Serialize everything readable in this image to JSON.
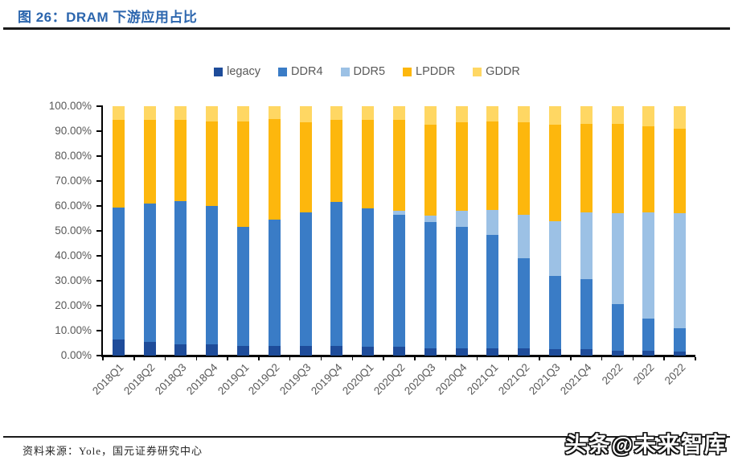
{
  "header": {
    "title": "图 26：DRAM 下游应用占比"
  },
  "footer": {
    "source": "资料来源：Yole，国元证券研究中心"
  },
  "watermark": "头条@未来智库",
  "chart_data": {
    "type": "bar",
    "stacked": true,
    "stacked_total": 100,
    "title": "DRAM 下游应用占比",
    "xlabel": "",
    "ylabel": "",
    "ylim": [
      0,
      100
    ],
    "grid": false,
    "legend_position": "top",
    "yticks": [
      "100.00%",
      "90.00%",
      "80.00%",
      "70.00%",
      "60.00%",
      "50.00%",
      "40.00%",
      "30.00%",
      "20.00%",
      "10.00%",
      "0.00%"
    ],
    "categories": [
      "2018Q1",
      "2018Q2",
      "2018Q3",
      "2018Q4",
      "2019Q1",
      "2019Q2",
      "2019Q3",
      "2019Q4",
      "2020Q1",
      "2020Q2",
      "2020Q3",
      "2020Q4",
      "2021Q1",
      "2021Q2",
      "2021Q3",
      "2021Q4",
      "2022",
      "2022",
      "2022"
    ],
    "series": [
      {
        "name": "legacy",
        "color": "#1E4C9A",
        "values": [
          6.5,
          5.5,
          4.5,
          4.5,
          4,
          4,
          4,
          4,
          3.5,
          3.5,
          3,
          3,
          3,
          3,
          2.5,
          2.5,
          2,
          2,
          1.5
        ]
      },
      {
        "name": "DDR4",
        "color": "#3A7CC6",
        "values": [
          53,
          55.5,
          57.5,
          55.5,
          47.5,
          50.5,
          53.5,
          57.5,
          55.5,
          53,
          50.5,
          48.5,
          45.5,
          36,
          29.5,
          28,
          18.5,
          13,
          9.5
        ]
      },
      {
        "name": "DDR5",
        "color": "#9CC1E5",
        "values": [
          0,
          0,
          0,
          0,
          0,
          0,
          0,
          0,
          0,
          1.5,
          2.5,
          6.5,
          10,
          17.5,
          22,
          27,
          36.5,
          42.5,
          46
        ]
      },
      {
        "name": "LPDDR",
        "color": "#FDB70D",
        "values": [
          35,
          33.5,
          32.5,
          34,
          42.5,
          40.5,
          36,
          33,
          35.5,
          36.5,
          36.5,
          35.5,
          35.5,
          37,
          38.5,
          35.5,
          36,
          34.5,
          34
        ]
      },
      {
        "name": "GDDR",
        "color": "#FFD763",
        "values": [
          5.5,
          5.5,
          5.5,
          6,
          6,
          5,
          6.5,
          5.5,
          5.5,
          5.5,
          7.5,
          6.5,
          6,
          6.5,
          7.5,
          7,
          7,
          8,
          9
        ]
      }
    ]
  }
}
